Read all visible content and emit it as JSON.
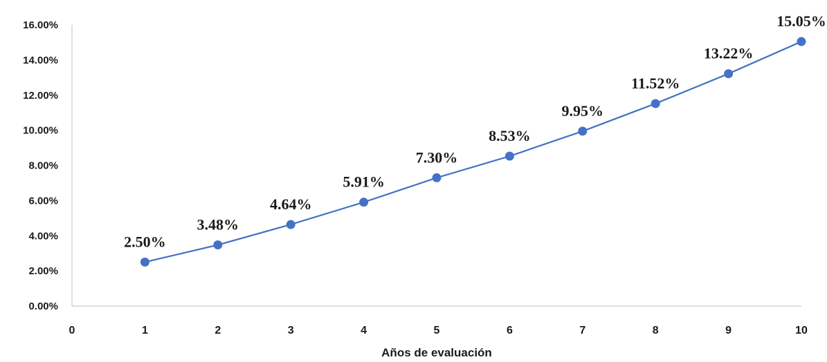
{
  "chart_data": {
    "type": "line",
    "title": "",
    "xlabel": "Años de evaluación",
    "ylabel": "",
    "x_ticks": [
      "0",
      "1",
      "2",
      "3",
      "4",
      "5",
      "6",
      "7",
      "8",
      "9",
      "10"
    ],
    "y_ticks": [
      "0.00%",
      "2.00%",
      "4.00%",
      "6.00%",
      "8.00%",
      "10.00%",
      "12.00%",
      "14.00%",
      "16.00%"
    ],
    "xlim": [
      0,
      10
    ],
    "ylim": [
      0,
      16
    ],
    "grid": false,
    "legend": "none",
    "series": [
      {
        "x": [
          1,
          2,
          3,
          4,
          5,
          6,
          7,
          8,
          9,
          10
        ],
        "values": [
          2.5,
          3.48,
          4.64,
          5.91,
          7.3,
          8.53,
          9.95,
          11.52,
          13.22,
          15.05
        ],
        "labels": [
          "2.50%",
          "3.48%",
          "4.64%",
          "5.91%",
          "7.30%",
          "8.53%",
          "9.95%",
          "11.52%",
          "13.22%",
          "15.05%"
        ],
        "color": "#4472c4"
      }
    ],
    "axis_color": "#bfbfbf"
  }
}
